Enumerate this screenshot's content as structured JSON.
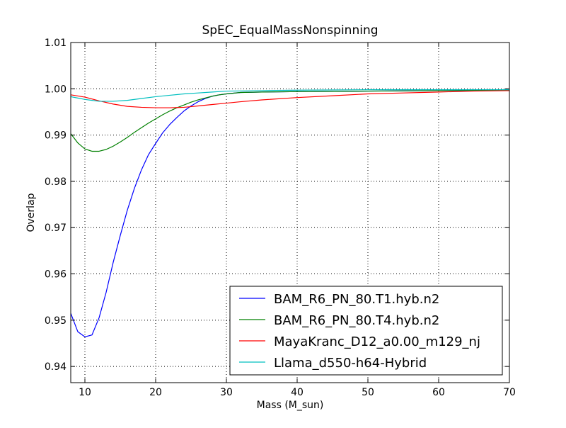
{
  "chart_data": {
    "type": "line",
    "title": "SpEC_EqualMassNonspinning",
    "xlabel": "Mass (M_sun)",
    "ylabel": "Overlap",
    "xlim": [
      8,
      70
    ],
    "ylim": [
      0.9365,
      1.01
    ],
    "x_ticks": [
      10,
      20,
      30,
      40,
      50,
      60,
      70
    ],
    "x_tick_labels": [
      "10",
      "20",
      "30",
      "40",
      "50",
      "60",
      "70"
    ],
    "y_ticks": [
      0.94,
      0.95,
      0.96,
      0.97,
      0.98,
      0.99,
      1.0,
      1.01
    ],
    "y_tick_labels": [
      "0.94",
      "0.95",
      "0.96",
      "0.97",
      "0.98",
      "0.99",
      "1.00",
      "1.01"
    ],
    "grid": true,
    "legend_position": "lower-right",
    "series": [
      {
        "name": "BAM_R6_PN_80.T1.hyb.n2",
        "color": "#0000ff",
        "points": [
          [
            8,
            0.9515
          ],
          [
            9,
            0.9475
          ],
          [
            10,
            0.9464
          ],
          [
            11,
            0.9468
          ],
          [
            12,
            0.9505
          ],
          [
            13,
            0.956
          ],
          [
            14,
            0.9625
          ],
          [
            15,
            0.9683
          ],
          [
            16,
            0.9738
          ],
          [
            17,
            0.9785
          ],
          [
            18,
            0.9825
          ],
          [
            19,
            0.9858
          ],
          [
            20,
            0.9882
          ],
          [
            21,
            0.9905
          ],
          [
            22,
            0.9923
          ],
          [
            23,
            0.9938
          ],
          [
            24,
            0.9952
          ],
          [
            25,
            0.9963
          ],
          [
            26,
            0.9972
          ],
          [
            27,
            0.9979
          ],
          [
            28,
            0.9984
          ],
          [
            29,
            0.9987
          ],
          [
            30,
            0.9989
          ],
          [
            32,
            0.9992
          ],
          [
            35,
            0.9993
          ],
          [
            40,
            0.9994
          ],
          [
            50,
            0.9995
          ],
          [
            60,
            0.9996
          ],
          [
            70,
            0.9997
          ]
        ]
      },
      {
        "name": "BAM_R6_PN_80.T4.hyb.n2",
        "color": "#008000",
        "points": [
          [
            8,
            0.9903
          ],
          [
            9,
            0.9883
          ],
          [
            10,
            0.987
          ],
          [
            11,
            0.9865
          ],
          [
            12,
            0.9865
          ],
          [
            13,
            0.9869
          ],
          [
            14,
            0.9876
          ],
          [
            15,
            0.9885
          ],
          [
            16,
            0.9895
          ],
          [
            17,
            0.9906
          ],
          [
            18,
            0.9916
          ],
          [
            19,
            0.9926
          ],
          [
            20,
            0.9935
          ],
          [
            21,
            0.9944
          ],
          [
            22,
            0.9952
          ],
          [
            23,
            0.9959
          ],
          [
            24,
            0.9965
          ],
          [
            25,
            0.9971
          ],
          [
            26,
            0.9976
          ],
          [
            27,
            0.998
          ],
          [
            28,
            0.9984
          ],
          [
            29,
            0.9987
          ],
          [
            30,
            0.9989
          ],
          [
            32,
            0.9992
          ],
          [
            35,
            0.9993
          ],
          [
            40,
            0.9994
          ],
          [
            50,
            0.9995
          ],
          [
            60,
            0.9996
          ],
          [
            70,
            0.9997
          ]
        ]
      },
      {
        "name": "MayaKranc_D12_a0.00_m129_nj",
        "color": "#ff0000",
        "points": [
          [
            8,
            0.9987
          ],
          [
            10,
            0.9982
          ],
          [
            12,
            0.9974
          ],
          [
            14,
            0.9967
          ],
          [
            16,
            0.9962
          ],
          [
            18,
            0.996
          ],
          [
            20,
            0.9959
          ],
          [
            22,
            0.9959
          ],
          [
            24,
            0.996
          ],
          [
            26,
            0.9963
          ],
          [
            28,
            0.9966
          ],
          [
            30,
            0.9969
          ],
          [
            32,
            0.9972
          ],
          [
            35,
            0.9976
          ],
          [
            40,
            0.9981
          ],
          [
            45,
            0.9985
          ],
          [
            50,
            0.9989
          ],
          [
            55,
            0.9991
          ],
          [
            60,
            0.9993
          ],
          [
            65,
            0.9995
          ],
          [
            70,
            0.9996
          ]
        ]
      },
      {
        "name": "Llama_d550-h64-Hybrid",
        "color": "#00bfbf",
        "points": [
          [
            8,
            0.9983
          ],
          [
            9,
            0.998
          ],
          [
            10,
            0.9977
          ],
          [
            11,
            0.9975
          ],
          [
            12,
            0.9973
          ],
          [
            13,
            0.9973
          ],
          [
            14,
            0.9973
          ],
          [
            16,
            0.9975
          ],
          [
            18,
            0.9979
          ],
          [
            20,
            0.9983
          ],
          [
            22,
            0.9986
          ],
          [
            24,
            0.9989
          ],
          [
            26,
            0.9991
          ],
          [
            28,
            0.9993
          ],
          [
            30,
            0.9995
          ],
          [
            35,
            0.9996
          ],
          [
            40,
            0.9997
          ],
          [
            50,
            0.9998
          ],
          [
            60,
            0.9998
          ],
          [
            70,
            0.9998
          ]
        ]
      }
    ]
  }
}
